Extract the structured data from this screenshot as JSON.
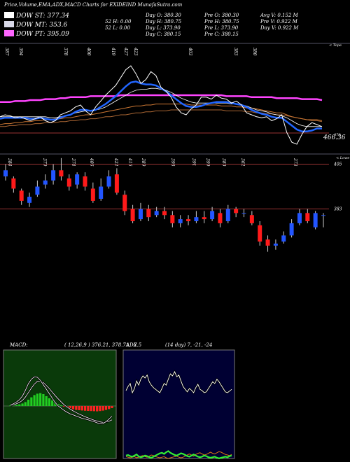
{
  "header": {
    "title": "Price,Volume,EMA,ADX,MACD Charts for EXIDEIND MunafaSutra.com",
    "dow": [
      {
        "label": "DOW ST: 377.34",
        "color": "#ffffff"
      },
      {
        "label": "DOW MT: 353.6",
        "color": "#d8d8e8"
      },
      {
        "label": "DOW PT: 395.09",
        "color": "#ff66ff"
      }
    ],
    "stats": [
      [
        "52 H: 0.00",
        "52 L: 0.00"
      ],
      [
        "Day O: 380.30",
        "Day H: 380.75",
        "Day L: 373.90",
        "Day C: 380.15"
      ],
      [
        "Pre O: 380.30",
        "Pre H: 380.75",
        "Pre L: 373.90",
        "Pre C: 380.15"
      ],
      [
        "Avg V: 0.152  M",
        "Pre V: 0.922  M",
        "Day V: 0.922  M"
      ]
    ]
  },
  "colors": {
    "up": "#2255ff",
    "down": "#ff1a1a",
    "ema_fast": "#2266ff",
    "ema_pt": "#ff44ff",
    "ema_mid": "#cc7733",
    "ema_slow": "#aa6633",
    "price_line": "#ffffff",
    "panel_border": "#555566",
    "hline": "#993333",
    "macd_bg": "#0a3a0a",
    "adx_bg": "#000033",
    "adx_line": "#ffffff",
    "adx_plus": "#33ee33",
    "adx_minus": "#dd7711"
  },
  "chart_data": [
    {
      "type": "line",
      "name": "ema_panel",
      "corner_label": "< Topa",
      "top_labels": [
        "387",
        "394",
        "378",
        "400",
        "419",
        "427",
        "423",
        "403",
        "383",
        "380"
      ],
      "price_badge": "466.36",
      "side_badge": "378",
      "series": [
        {
          "role": "price",
          "values": [
            0.62,
            0.6,
            0.61,
            0.63,
            0.62,
            0.64,
            0.66,
            0.64,
            0.62,
            0.66,
            0.68,
            0.66,
            0.6,
            0.58,
            0.56,
            0.52,
            0.5,
            0.56,
            0.6,
            0.52,
            0.46,
            0.4,
            0.35,
            0.3,
            0.22,
            0.14,
            0.1,
            0.18,
            0.28,
            0.24,
            0.16,
            0.2,
            0.32,
            0.36,
            0.42,
            0.52,
            0.58,
            0.6,
            0.54,
            0.5,
            0.42,
            0.42,
            0.44,
            0.4,
            0.43,
            0.44,
            0.48,
            0.46,
            0.5,
            0.58,
            0.6,
            0.62,
            0.63,
            0.62,
            0.66,
            0.64,
            0.6,
            0.78,
            0.88,
            0.9,
            0.8,
            0.72,
            0.68,
            0.7,
            0.72
          ]
        },
        {
          "role": "ema_fast",
          "values": [
            0.64,
            0.63,
            0.63,
            0.63,
            0.63,
            0.63,
            0.64,
            0.64,
            0.63,
            0.64,
            0.65,
            0.65,
            0.63,
            0.61,
            0.6,
            0.57,
            0.55,
            0.55,
            0.56,
            0.55,
            0.52,
            0.49,
            0.45,
            0.41,
            0.36,
            0.31,
            0.27,
            0.26,
            0.28,
            0.29,
            0.29,
            0.3,
            0.33,
            0.36,
            0.4,
            0.44,
            0.48,
            0.51,
            0.52,
            0.52,
            0.51,
            0.49,
            0.48,
            0.47,
            0.47,
            0.47,
            0.48,
            0.49,
            0.5,
            0.52,
            0.55,
            0.57,
            0.59,
            0.6,
            0.62,
            0.63,
            0.63,
            0.67,
            0.71,
            0.75,
            0.77,
            0.77,
            0.76,
            0.74,
            0.74
          ]
        },
        {
          "role": "ema_white",
          "values": [
            0.62,
            0.62,
            0.62,
            0.62,
            0.62,
            0.62,
            0.62,
            0.62,
            0.62,
            0.62,
            0.63,
            0.63,
            0.62,
            0.61,
            0.6,
            0.58,
            0.57,
            0.56,
            0.56,
            0.55,
            0.54,
            0.52,
            0.49,
            0.46,
            0.43,
            0.4,
            0.37,
            0.35,
            0.34,
            0.34,
            0.33,
            0.33,
            0.34,
            0.35,
            0.37,
            0.4,
            0.43,
            0.45,
            0.47,
            0.48,
            0.48,
            0.48,
            0.48,
            0.48,
            0.48,
            0.48,
            0.49,
            0.49,
            0.5,
            0.51,
            0.53,
            0.55,
            0.56,
            0.57,
            0.59,
            0.6,
            0.61,
            0.63,
            0.66,
            0.69,
            0.71,
            0.72,
            0.72,
            0.72,
            0.72
          ]
        },
        {
          "role": "ema_pt",
          "values": [
            0.47,
            0.47,
            0.47,
            0.46,
            0.46,
            0.46,
            0.45,
            0.45,
            0.45,
            0.44,
            0.44,
            0.44,
            0.43,
            0.43,
            0.42,
            0.42,
            0.42,
            0.42,
            0.41,
            0.41,
            0.41,
            0.41,
            0.41,
            0.41,
            0.4,
            0.4,
            0.4,
            0.4,
            0.4,
            0.4,
            0.4,
            0.4,
            0.4,
            0.4,
            0.4,
            0.4,
            0.4,
            0.4,
            0.4,
            0.4,
            0.4,
            0.4,
            0.4,
            0.4,
            0.4,
            0.41,
            0.41,
            0.41,
            0.41,
            0.41,
            0.42,
            0.42,
            0.42,
            0.42,
            0.42,
            0.43,
            0.43,
            0.43,
            0.43,
            0.43,
            0.44,
            0.44,
            0.44,
            0.44,
            0.45
          ]
        },
        {
          "role": "ema_mid",
          "values": [
            0.7,
            0.69,
            0.69,
            0.68,
            0.68,
            0.67,
            0.67,
            0.66,
            0.66,
            0.65,
            0.65,
            0.64,
            0.64,
            0.63,
            0.63,
            0.62,
            0.61,
            0.6,
            0.6,
            0.59,
            0.58,
            0.57,
            0.56,
            0.55,
            0.54,
            0.53,
            0.52,
            0.51,
            0.51,
            0.5,
            0.5,
            0.49,
            0.49,
            0.49,
            0.49,
            0.49,
            0.49,
            0.49,
            0.5,
            0.5,
            0.5,
            0.5,
            0.5,
            0.5,
            0.51,
            0.51,
            0.51,
            0.52,
            0.52,
            0.53,
            0.53,
            0.54,
            0.55,
            0.56,
            0.57,
            0.58,
            0.58,
            0.6,
            0.62,
            0.63,
            0.64,
            0.65,
            0.65,
            0.65,
            0.66
          ]
        },
        {
          "role": "ema_slow",
          "values": [
            0.72,
            0.72,
            0.71,
            0.71,
            0.7,
            0.7,
            0.7,
            0.69,
            0.69,
            0.68,
            0.68,
            0.68,
            0.67,
            0.67,
            0.66,
            0.66,
            0.65,
            0.65,
            0.64,
            0.64,
            0.63,
            0.62,
            0.62,
            0.61,
            0.6,
            0.6,
            0.59,
            0.58,
            0.58,
            0.57,
            0.57,
            0.56,
            0.56,
            0.56,
            0.55,
            0.55,
            0.55,
            0.55,
            0.55,
            0.55,
            0.55,
            0.55,
            0.55,
            0.55,
            0.55,
            0.56,
            0.56,
            0.56,
            0.56,
            0.57,
            0.57,
            0.58,
            0.58,
            0.59,
            0.59,
            0.6,
            0.6,
            0.61,
            0.62,
            0.63,
            0.64,
            0.65,
            0.66,
            0.66,
            0.67
          ]
        }
      ]
    },
    {
      "type": "candlestick",
      "name": "price_panel",
      "corner_label": "< Lowe",
      "top_labels": [
        "384",
        "379",
        "374",
        "406",
        "422",
        "416",
        "389",
        "398",
        "391",
        "399",
        "380",
        "362",
        "373"
      ],
      "levels": [
        "405",
        "383"
      ],
      "candles": [
        {
          "o": 399,
          "c": 402,
          "h": 405,
          "l": 397
        },
        {
          "o": 398,
          "c": 393,
          "h": 399,
          "l": 391
        },
        {
          "o": 392,
          "c": 387,
          "h": 393,
          "l": 385
        },
        {
          "o": 386,
          "c": 389,
          "h": 391,
          "l": 384
        },
        {
          "o": 390,
          "c": 394,
          "h": 397,
          "l": 389
        },
        {
          "o": 395,
          "c": 397,
          "h": 400,
          "l": 393
        },
        {
          "o": 397,
          "c": 402,
          "h": 405,
          "l": 395
        },
        {
          "o": 402,
          "c": 399,
          "h": 408,
          "l": 397
        },
        {
          "o": 398,
          "c": 394,
          "h": 400,
          "l": 392
        },
        {
          "o": 395,
          "c": 400,
          "h": 401,
          "l": 393
        },
        {
          "o": 399,
          "c": 394,
          "h": 401,
          "l": 392
        },
        {
          "o": 393,
          "c": 387,
          "h": 396,
          "l": 386
        },
        {
          "o": 388,
          "c": 394,
          "h": 398,
          "l": 387
        },
        {
          "o": 394,
          "c": 399,
          "h": 402,
          "l": 393
        },
        {
          "o": 400,
          "c": 391,
          "h": 403,
          "l": 390
        },
        {
          "o": 390,
          "c": 382,
          "h": 392,
          "l": 380
        },
        {
          "o": 383,
          "c": 377,
          "h": 385,
          "l": 376
        },
        {
          "o": 378,
          "c": 383,
          "h": 386,
          "l": 377
        },
        {
          "o": 383,
          "c": 379,
          "h": 385,
          "l": 377
        },
        {
          "o": 380,
          "c": 382,
          "h": 384,
          "l": 379
        },
        {
          "o": 382,
          "c": 380,
          "h": 384,
          "l": 378
        },
        {
          "o": 380,
          "c": 376,
          "h": 382,
          "l": 374
        },
        {
          "o": 376,
          "c": 378,
          "h": 380,
          "l": 374
        },
        {
          "o": 378,
          "c": 377,
          "h": 380,
          "l": 375
        },
        {
          "o": 377,
          "c": 379,
          "h": 382,
          "l": 376
        },
        {
          "o": 379,
          "c": 378,
          "h": 382,
          "l": 376
        },
        {
          "o": 378,
          "c": 382,
          "h": 384,
          "l": 377
        },
        {
          "o": 381,
          "c": 376,
          "h": 383,
          "l": 374
        },
        {
          "o": 377,
          "c": 383,
          "h": 385,
          "l": 376
        },
        {
          "o": 383,
          "c": 381,
          "h": 384,
          "l": 379
        },
        {
          "o": 381,
          "c": 381,
          "h": 383,
          "l": 379
        },
        {
          "o": 380,
          "c": 376,
          "h": 382,
          "l": 375
        },
        {
          "o": 375,
          "c": 367,
          "h": 377,
          "l": 365
        },
        {
          "o": 368,
          "c": 365,
          "h": 370,
          "l": 362
        },
        {
          "o": 365,
          "c": 366,
          "h": 368,
          "l": 363
        },
        {
          "o": 367,
          "c": 370,
          "h": 372,
          "l": 366
        },
        {
          "o": 370,
          "c": 376,
          "h": 378,
          "l": 369
        },
        {
          "o": 376,
          "c": 381,
          "h": 383,
          "l": 375
        },
        {
          "o": 381,
          "c": 377,
          "h": 383,
          "l": 376
        },
        {
          "o": 374,
          "c": 381,
          "h": 382,
          "l": 373
        },
        {
          "o": 380,
          "c": 380,
          "h": 381,
          "l": 374
        }
      ]
    },
    {
      "type": "bar",
      "name": "macd_panel",
      "label": "MACD:",
      "params": "( 12,26,9 ) 376.21,  378.71, -2.5",
      "histogram": [
        0.05,
        0.08,
        0.1,
        0.12,
        0.18,
        0.28,
        0.45,
        0.62,
        0.78,
        0.88,
        0.92,
        0.85,
        0.7,
        0.55,
        0.4,
        0.28,
        0.15,
        0.05,
        -0.05,
        -0.12,
        -0.18,
        -0.24,
        -0.28,
        -0.3,
        -0.32,
        -0.34,
        -0.35,
        -0.36,
        -0.37,
        -0.38,
        -0.36,
        -0.33,
        -0.28,
        -0.22,
        -0.15
      ],
      "macd": [
        0.05,
        0.1,
        0.18,
        0.28,
        0.45,
        0.7,
        1.0,
        1.2,
        1.3,
        1.28,
        1.15,
        0.95,
        0.75,
        0.55,
        0.35,
        0.15,
        0.0,
        -0.1,
        -0.2,
        -0.28,
        -0.35,
        -0.4,
        -0.45,
        -0.5,
        -0.55,
        -0.58,
        -0.62,
        -0.66,
        -0.7,
        -0.75,
        -0.8,
        -0.78,
        -0.7,
        -0.58,
        -0.45
      ],
      "signal": [
        0.02,
        0.05,
        0.1,
        0.16,
        0.25,
        0.4,
        0.6,
        0.8,
        0.98,
        1.1,
        1.12,
        1.05,
        0.92,
        0.78,
        0.62,
        0.46,
        0.32,
        0.18,
        0.05,
        -0.05,
        -0.14,
        -0.22,
        -0.29,
        -0.36,
        -0.42,
        -0.48,
        -0.53,
        -0.58,
        -0.63,
        -0.67,
        -0.71,
        -0.73,
        -0.72,
        -0.68,
        -0.62
      ]
    },
    {
      "type": "line",
      "name": "adx_panel",
      "label": "ADX",
      "params": "(14  day) 7,  -21, -24",
      "series": [
        {
          "role": "adx",
          "values": [
            0.45,
            0.55,
            0.62,
            0.4,
            0.5,
            0.68,
            0.58,
            0.72,
            0.8,
            0.75,
            0.82,
            0.66,
            0.58,
            0.52,
            0.48,
            0.44,
            0.4,
            0.5,
            0.62,
            0.58,
            0.72,
            0.85,
            0.8,
            0.9,
            0.78,
            0.82,
            0.68,
            0.55,
            0.48,
            0.42,
            0.5,
            0.46,
            0.4,
            0.52,
            0.6,
            0.48,
            0.45,
            0.4,
            0.42,
            0.5,
            0.58,
            0.66,
            0.62,
            0.72,
            0.66,
            0.58,
            0.5,
            0.42,
            0.4,
            0.44,
            0.48
          ]
        },
        {
          "role": "plus_di",
          "values": [
            0.18,
            0.2,
            0.16,
            0.14,
            0.18,
            0.22,
            0.15,
            0.12,
            0.14,
            0.18,
            0.16,
            0.12,
            0.1,
            0.14,
            0.18,
            0.22,
            0.26,
            0.28,
            0.24,
            0.3,
            0.34,
            0.28,
            0.24,
            0.2,
            0.18,
            0.22,
            0.26,
            0.24,
            0.2,
            0.16,
            0.14,
            0.18,
            0.22,
            0.18,
            0.14,
            0.12,
            0.14,
            0.18,
            0.16,
            0.12,
            0.1,
            0.12,
            0.14,
            0.1,
            0.08,
            0.1,
            0.12,
            0.14,
            0.12,
            0.16,
            0.18
          ]
        },
        {
          "role": "minus_di",
          "values": [
            0.14,
            0.12,
            0.1,
            0.12,
            0.14,
            0.1,
            0.12,
            0.16,
            0.18,
            0.14,
            0.12,
            0.16,
            0.2,
            0.18,
            0.14,
            0.12,
            0.1,
            0.12,
            0.14,
            0.1,
            0.08,
            0.1,
            0.12,
            0.14,
            0.16,
            0.12,
            0.1,
            0.12,
            0.16,
            0.2,
            0.24,
            0.2,
            0.16,
            0.22,
            0.26,
            0.28,
            0.24,
            0.2,
            0.22,
            0.26,
            0.3,
            0.26,
            0.24,
            0.28,
            0.32,
            0.3,
            0.26,
            0.22,
            0.2,
            0.18,
            0.22
          ]
        }
      ]
    }
  ]
}
